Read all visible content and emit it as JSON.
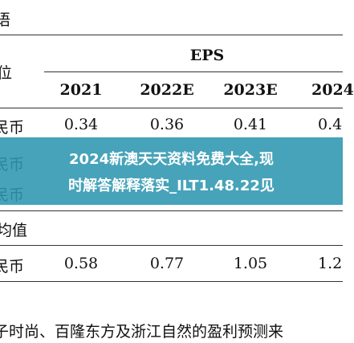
{
  "header": {
    "corner": "语",
    "unit": "位",
    "group": "EPS",
    "columns": [
      "2021",
      "2022E",
      "2023E",
      "2024"
    ]
  },
  "table": {
    "rows": [
      [
        "民币",
        "0.34",
        "0.36",
        "0.41",
        "0.4"
      ],
      [
        "民币"
      ],
      [
        "民币"
      ]
    ],
    "section": "均值",
    "section_rows": [
      [
        "民币",
        "0.58",
        "0.77",
        "1.05",
        "1.2"
      ]
    ]
  },
  "footnote": "子时尚、百隆东方及浙江自然的盈利预测来",
  "banner": {
    "lines": [
      "2024新澳天天资料免费大全,现",
      "时解答解释落实_ILT1.48.22见"
    ]
  }
}
